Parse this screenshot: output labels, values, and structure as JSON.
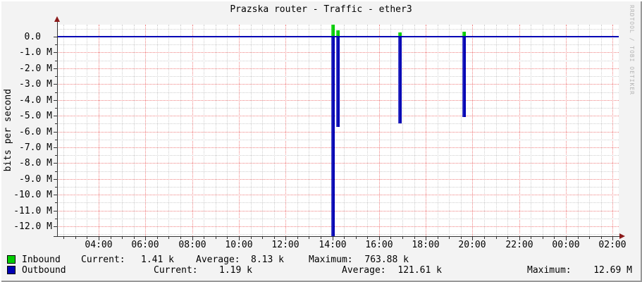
{
  "title": "Prazska router - Traffic - ether3",
  "watermark": "RRDTOOL / TOBI OETIKER",
  "y_axis_label": "bits per second",
  "legend": {
    "inbound": {
      "label": "Inbound",
      "swatch_color": "#00cc00",
      "current_label": "Current:",
      "current_value": "1.41 k",
      "average_label": "Average:",
      "average_value": "8.13 k",
      "maximum_label": "Maximum:",
      "maximum_value": "763.88 k"
    },
    "outbound": {
      "label": "Outbound",
      "swatch_color": "#0000b4",
      "current_label": "Current:",
      "current_value": "1.19 k",
      "average_label": "Average:",
      "average_value": "121.61 k",
      "maximum_label": "Maximum:",
      "maximum_value": "12.69 M"
    }
  },
  "chart_data": {
    "type": "bar",
    "title": "Prazska router - Traffic - ether3",
    "xlabel": "",
    "ylabel": "bits per second",
    "x_tick_labels": [
      "04:00",
      "06:00",
      "08:00",
      "10:00",
      "12:00",
      "14:00",
      "16:00",
      "18:00",
      "20:00",
      "22:00",
      "00:00",
      "02:00"
    ],
    "x_tick_hours": [
      4,
      6,
      8,
      10,
      12,
      14,
      16,
      18,
      20,
      22,
      24,
      26
    ],
    "y_tick_labels": [
      "0.0",
      "-1.0 M",
      "-2.0 M",
      "-3.0 M",
      "-4.0 M",
      "-5.0 M",
      "-6.0 M",
      "-7.0 M",
      "-8.0 M",
      "-9.0 M",
      "-10.0 M",
      "-11.0 M",
      "-12.0 M"
    ],
    "y_tick_values_mbps": [
      0,
      -1,
      -2,
      -3,
      -4,
      -5,
      -6,
      -7,
      -8,
      -9,
      -10,
      -11,
      -12
    ],
    "xlim_hours": [
      2.22,
      26.26
    ],
    "ylim_mbps": [
      -12.62,
      0.76
    ],
    "grid": {
      "major_color": "#f08080",
      "minor_color": "#cfcfcf",
      "x_major_step_hours": 2,
      "x_minor_step_hours": 0.5,
      "y_major_step_mbps": 1,
      "y_minor_step_mbps": 0.5
    },
    "axis_color": "#333333",
    "arrow_color": "#8b1a1a",
    "zero_line_color": "#0000b4",
    "series": [
      {
        "name": "Inbound",
        "color": "#00cc00",
        "direction": "positive",
        "baseline_mbps": 0,
        "spikes": [
          {
            "hour": 14.0,
            "mbps": 0.76
          },
          {
            "hour": 14.22,
            "mbps": 0.4
          },
          {
            "hour": 16.88,
            "mbps": 0.27
          },
          {
            "hour": 19.63,
            "mbps": 0.3
          }
        ]
      },
      {
        "name": "Outbound",
        "color": "#0000b4",
        "direction": "negative",
        "baseline_mbps": 0,
        "spikes": [
          {
            "hour": 14.0,
            "mbps": -12.6
          },
          {
            "hour": 14.22,
            "mbps": -5.7
          },
          {
            "hour": 16.88,
            "mbps": -5.5
          },
          {
            "hour": 19.63,
            "mbps": -5.1
          }
        ]
      }
    ],
    "stats": {
      "inbound": {
        "current": "1.41 k",
        "average": "8.13 k",
        "maximum": "763.88 k"
      },
      "outbound": {
        "current": "1.19 k",
        "average": "121.61 k",
        "maximum": "12.69 M"
      }
    }
  }
}
